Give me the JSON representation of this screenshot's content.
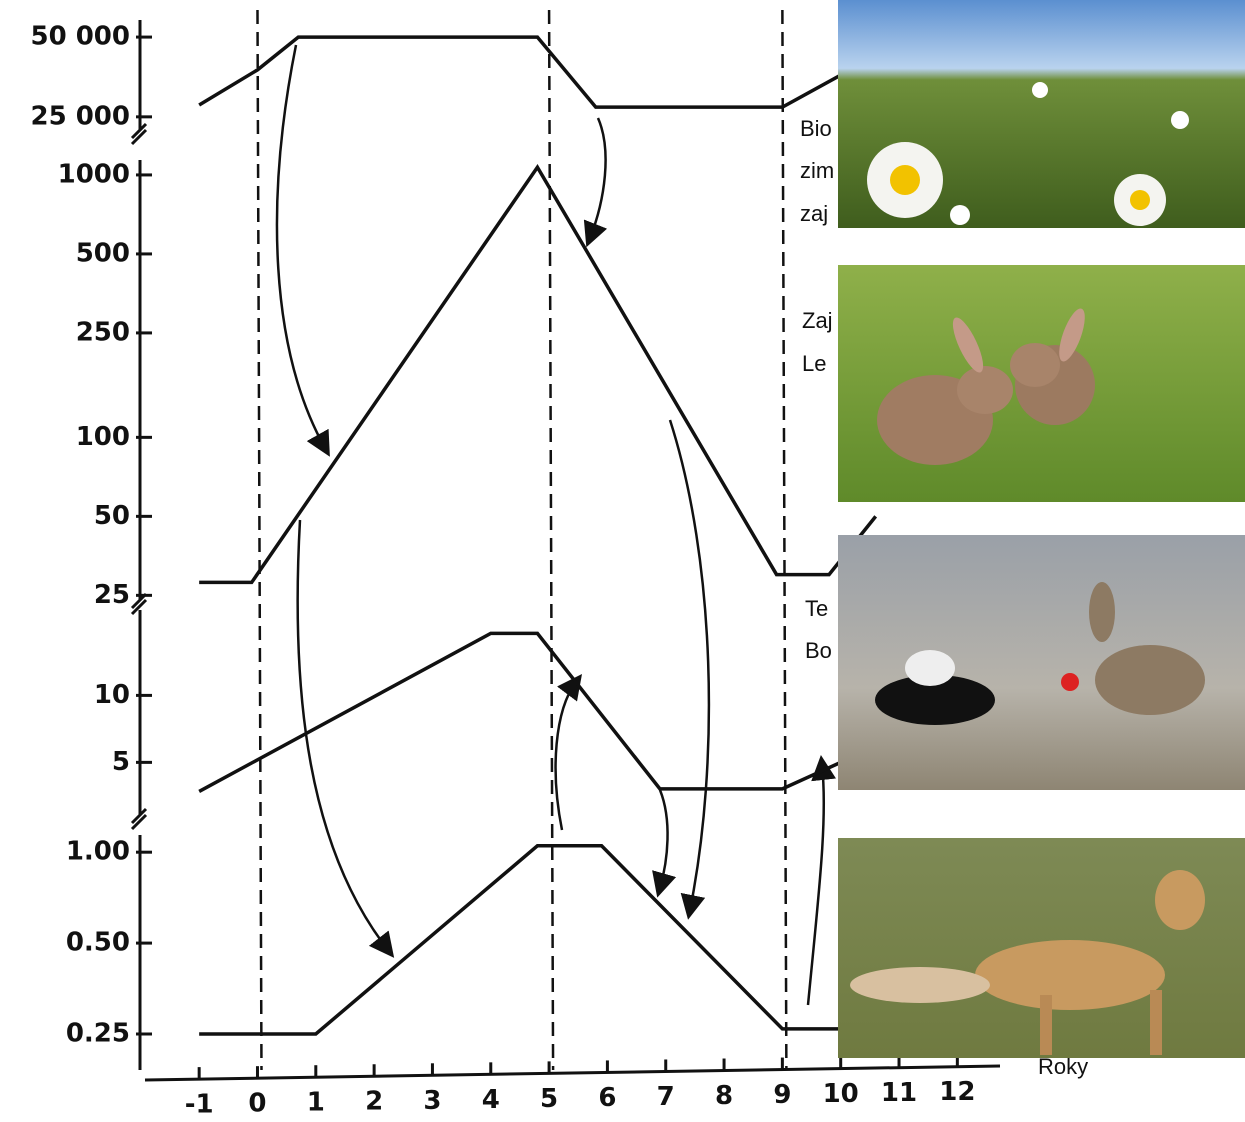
{
  "chart_data": [
    {
      "type": "line",
      "log_scale": true,
      "ylim": [
        22300,
        58000
      ],
      "yticks": [
        {
          "value": 25000,
          "label": "25 000"
        },
        {
          "value": 50000,
          "label": "50 000"
        }
      ],
      "xlim": [
        -1.5,
        12.8
      ],
      "annotations": [
        "Bio",
        "zim",
        "zaj"
      ],
      "series": [
        {
          "color": "#111111",
          "x": [
            -1,
            0,
            0.7,
            4.8,
            5.8,
            9,
            10.2
          ],
          "values": [
            27700,
            37600,
            50000,
            50000,
            27200,
            27200,
            38000
          ]
        }
      ]
    },
    {
      "type": "line",
      "log_scale": true,
      "ylim": [
        24,
        1140
      ],
      "yticks": [
        25,
        50,
        100,
        250,
        500,
        1000
      ],
      "xlim": [
        -1.5,
        12.8
      ],
      "annotations": [
        "Zaj",
        "Le"
      ],
      "series": [
        {
          "color": "#111111",
          "x": [
            -1,
            -0.1,
            4.8,
            8.9,
            9.8,
            10.6
          ],
          "values": [
            28,
            28,
            1070,
            30,
            30,
            50
          ]
        }
      ]
    },
    {
      "type": "line",
      "log_scale": true,
      "ylim": [
        2.9,
        24.2
      ],
      "yticks": [
        5,
        10
      ],
      "xlim": [
        -1.5,
        12.8
      ],
      "annotations": [
        "Te",
        "Bo"
      ],
      "series": [
        {
          "color": "#111111",
          "x": [
            -1,
            4,
            4.8,
            6.9,
            9,
            10
          ],
          "values": [
            3.7,
            19,
            19,
            3.8,
            3.8,
            5
          ]
        }
      ]
    },
    {
      "type": "line",
      "log_scale": true,
      "ylim": [
        0.19,
        1.14
      ],
      "yticks": [
        {
          "value": 0.25,
          "label": "0.25"
        },
        {
          "value": 0.5,
          "label": "0.50"
        },
        {
          "value": 1,
          "label": "1.00"
        }
      ],
      "xlim": [
        -1.5,
        12.8
      ],
      "xticks": [
        -1,
        0,
        1,
        2,
        3,
        4,
        5,
        6,
        7,
        8,
        9,
        10,
        11,
        12
      ],
      "xlabel": "Roky",
      "reference_lines_x": [
        0,
        5,
        9
      ],
      "series": [
        {
          "color": "#111111",
          "x": [
            -1,
            1,
            4.8,
            5.9,
            9,
            10
          ],
          "values": [
            0.25,
            0.25,
            1.05,
            1.05,
            0.26,
            0.26
          ]
        }
      ]
    }
  ]
}
